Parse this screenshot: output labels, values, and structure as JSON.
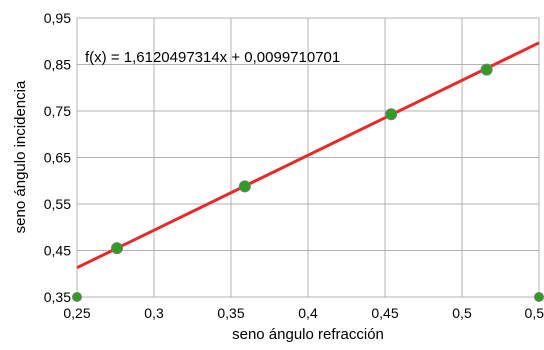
{
  "chart_data": {
    "type": "scatter",
    "xlabel": "seno ángulo refracción",
    "ylabel": "seno ángulo incidencia",
    "xlim": [
      0.25,
      0.55
    ],
    "ylim": [
      0.35,
      0.95
    ],
    "x_ticks": [
      "0,25",
      "0,3",
      "0,35",
      "0,4",
      "0,45",
      "0,5",
      "0,5"
    ],
    "y_ticks": [
      "0,95",
      "0,85",
      "0,75",
      "0,65",
      "0,55",
      "0,45",
      "0,35"
    ],
    "grid": true,
    "series": [
      {
        "points": [
          {
            "x": 0.276,
            "y": 0.455
          },
          {
            "x": 0.359,
            "y": 0.588
          },
          {
            "x": 0.454,
            "y": 0.743
          },
          {
            "x": 0.516,
            "y": 0.839
          }
        ],
        "color": "#2e9e1f"
      }
    ],
    "trendline": {
      "slope": 1.6120497314,
      "intercept": 0.0099710701,
      "color": "#e8292a",
      "equation_label": "f(x) = 1,6120497314x + 0,0099710701"
    },
    "edge_points": [
      {
        "x": 0.25,
        "y": 0.35
      },
      {
        "x": 0.55,
        "y": 0.35
      }
    ]
  }
}
